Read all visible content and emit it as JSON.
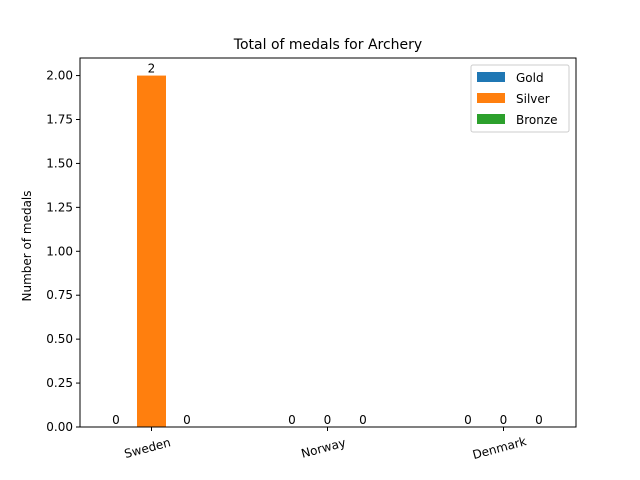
{
  "chart_data": {
    "type": "bar",
    "title": "Total of  medals for Archery",
    "xlabel": "",
    "ylabel": "Number of medals",
    "categories": [
      "Sweden",
      "Norway",
      "Denmark"
    ],
    "series": [
      {
        "name": "Gold",
        "values": [
          0,
          0,
          0
        ],
        "color": "#1f77b4"
      },
      {
        "name": "Silver",
        "values": [
          2,
          0,
          0
        ],
        "color": "#ff7f0e"
      },
      {
        "name": "Bronze",
        "values": [
          0,
          0,
          0
        ],
        "color": "#2ca02c"
      }
    ],
    "ylim": [
      0,
      2.1
    ],
    "yticks": [
      "0.00",
      "0.25",
      "0.50",
      "0.75",
      "1.00",
      "1.25",
      "1.50",
      "1.75",
      "2.00"
    ],
    "legend_position": "top-right",
    "grid": false
  }
}
